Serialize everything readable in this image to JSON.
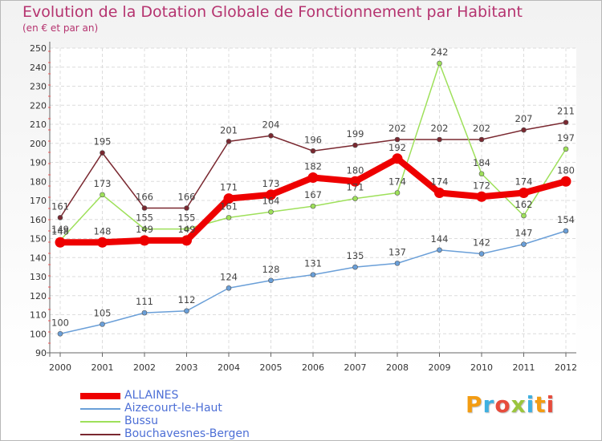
{
  "header": {
    "title": "Evolution de la Dotation Globale de Fonctionnement par Habitant",
    "subtitle": "(en € et par an)"
  },
  "brand": {
    "text": "Proxiti",
    "colors": [
      "#f39c12",
      "#3fb0e0",
      "#e74c3c",
      "#9bc53d",
      "#3fb0e0",
      "#f39c12",
      "#e74c3c"
    ]
  },
  "chart_data": {
    "type": "line",
    "x": [
      "2000",
      "2001",
      "2002",
      "2003",
      "2004",
      "2005",
      "2006",
      "2007",
      "2008",
      "2009",
      "2010",
      "2011",
      "2012"
    ],
    "ylim": [
      90,
      250
    ],
    "yticks": [
      90,
      100,
      110,
      120,
      130,
      140,
      150,
      160,
      170,
      180,
      190,
      200,
      210,
      220,
      230,
      240,
      250
    ],
    "grid": true,
    "legend_position": "bottom-left",
    "series": [
      {
        "name": "ALLAINES",
        "color": "#ee0000",
        "values": [
          148,
          148,
          149,
          149,
          171,
          173,
          182,
          180,
          192,
          174,
          172,
          174,
          180
        ],
        "labels": [
          "148",
          "148",
          "149",
          "149",
          "171",
          "173",
          "182",
          "180",
          "192",
          "174",
          "172",
          "174",
          "180"
        ]
      },
      {
        "name": "Aizecourt-le-Haut",
        "color": "#6a9fd8",
        "values": [
          100,
          105,
          111,
          112,
          124,
          128,
          131,
          135,
          137,
          144,
          142,
          147,
          154
        ],
        "labels": [
          "100",
          "105",
          "111",
          "112",
          "124",
          "128",
          "131",
          "135",
          "137",
          "144",
          "142",
          "147",
          "154"
        ]
      },
      {
        "name": "Bussu",
        "color": "#9ee05a",
        "values": [
          149,
          173,
          155,
          155,
          161,
          164,
          167,
          171,
          174,
          242,
          184,
          162,
          197
        ],
        "labels": [
          "149",
          "173",
          "155",
          "155",
          "161",
          "164",
          "167",
          "171",
          "174",
          "242",
          "184",
          "162",
          "197"
        ]
      },
      {
        "name": "Bouchavesnes-Bergen",
        "color": "#7a2830",
        "values": [
          161,
          195,
          166,
          166,
          201,
          204,
          196,
          199,
          202,
          202,
          202,
          207,
          211
        ],
        "labels": [
          "161",
          "195",
          "166",
          "166",
          "201",
          "204",
          "196",
          "199",
          "202",
          "202",
          "202",
          "207",
          "211"
        ]
      }
    ]
  }
}
